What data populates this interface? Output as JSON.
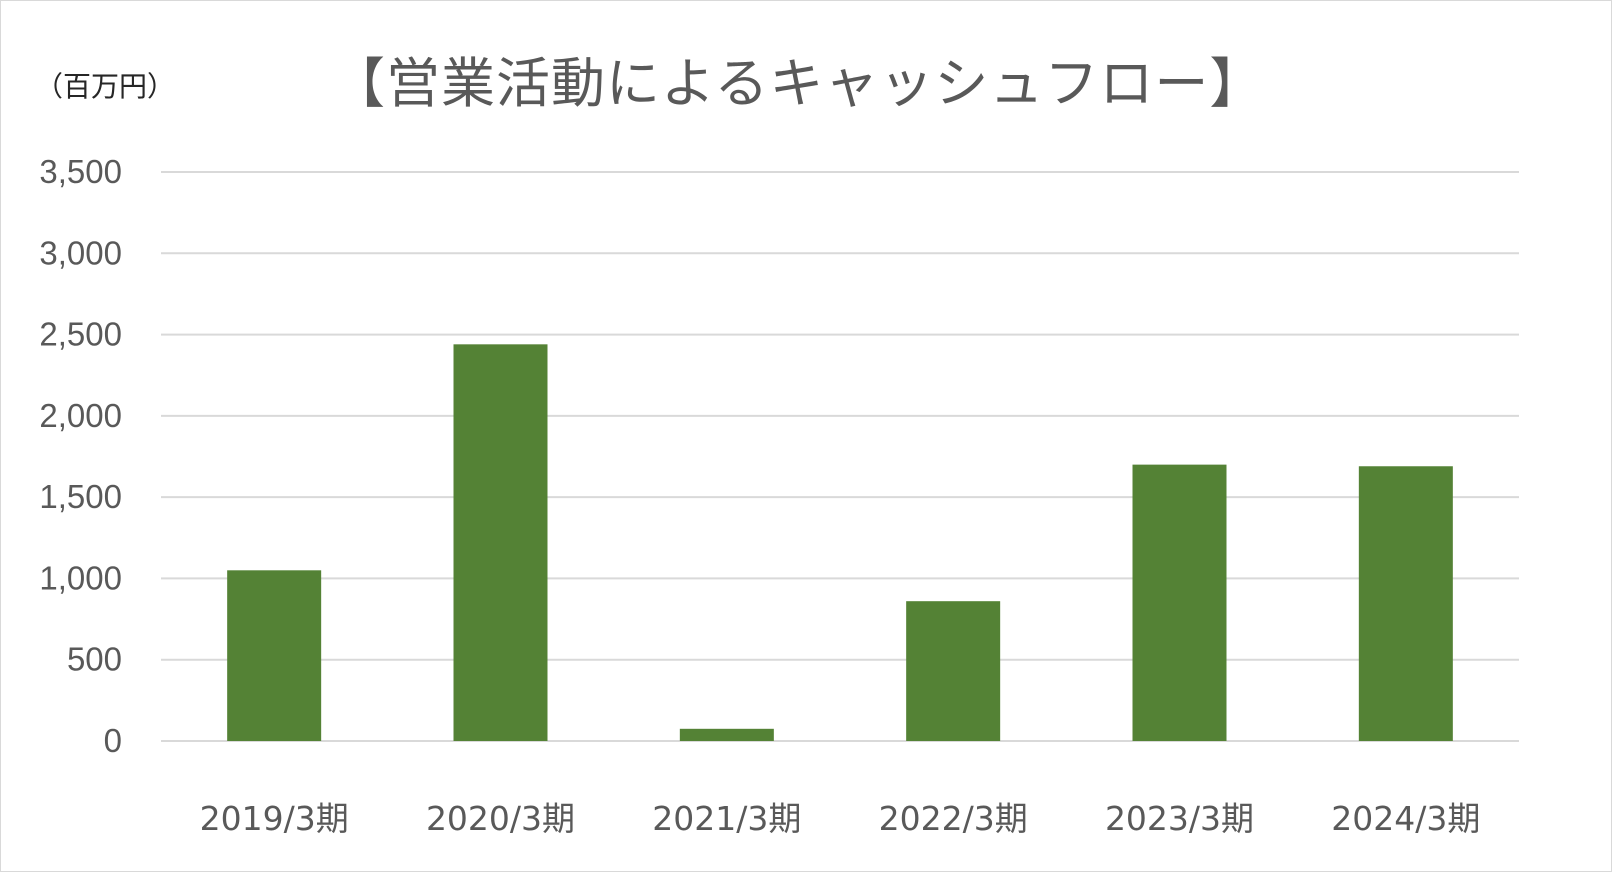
{
  "chart_data": {
    "type": "bar",
    "title": "【営業活動によるキャッシュフロー】",
    "unit_label": "（百万円）",
    "categories": [
      "2019/3期",
      "2020/3期",
      "2021/3期",
      "2022/3期",
      "2023/3期",
      "2024/3期"
    ],
    "series": [
      {
        "values": [
          1050,
          2440,
          75,
          860,
          1700,
          1690
        ]
      }
    ],
    "ylim": [
      0,
      3500
    ],
    "yticks": [
      0,
      500,
      1000,
      1500,
      2000,
      2500,
      3000,
      3500
    ],
    "ytick_labels": [
      "0",
      "500",
      "1,000",
      "1,500",
      "2,000",
      "2,500",
      "3,000",
      "3,500"
    ],
    "grid": true,
    "legend": "none",
    "bar_color": "#548235",
    "grid_color": "#d9d9d9",
    "text_color": "#595959"
  }
}
